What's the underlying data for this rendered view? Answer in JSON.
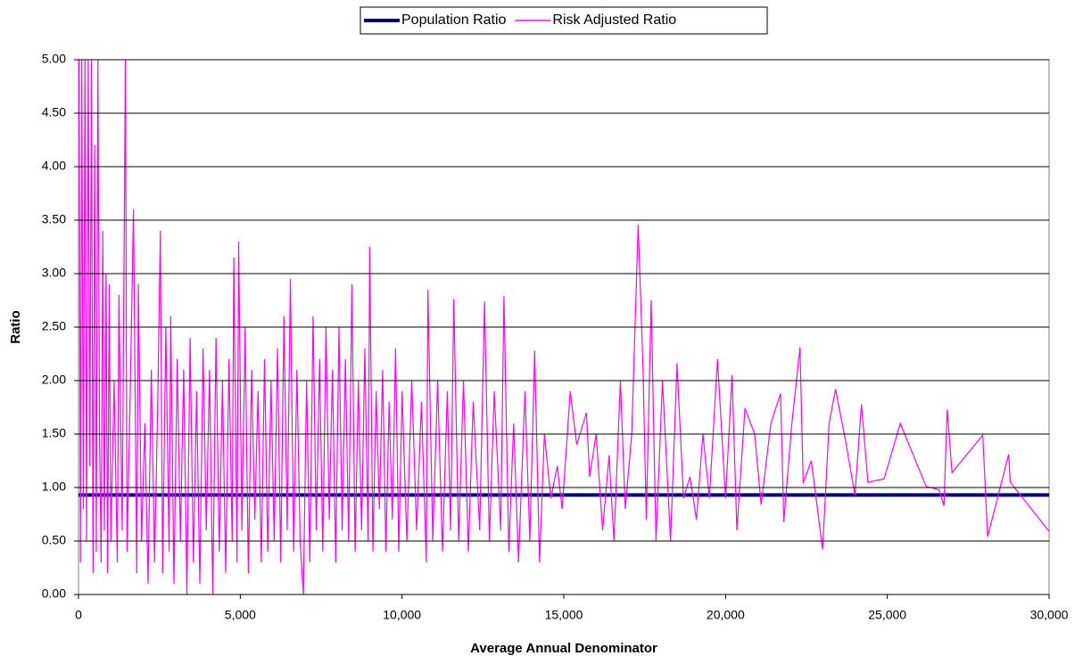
{
  "chart_data": {
    "type": "line",
    "x_label": "Average Annual Denominator",
    "y_label": "Ratio",
    "xlim": [
      0,
      30000
    ],
    "ylim": [
      0,
      5
    ],
    "xticks": [
      0,
      {
        "value": 5000,
        "label": "5,000"
      },
      {
        "value": 10000,
        "label": "10,000"
      },
      {
        "value": 15000,
        "label": "15,000"
      },
      {
        "value": 20000,
        "label": "20,000"
      },
      {
        "value": 25000,
        "label": "25,000"
      },
      {
        "value": 30000,
        "label": "30,000"
      }
    ],
    "yticks": [
      {
        "value": 0,
        "label": "0.00"
      },
      {
        "value": 0.5,
        "label": "0.50"
      },
      {
        "value": 1,
        "label": "1.00"
      },
      {
        "value": 1.5,
        "label": "1.50"
      },
      {
        "value": 2,
        "label": "2.00"
      },
      {
        "value": 2.5,
        "label": "2.50"
      },
      {
        "value": 3,
        "label": "3.00"
      },
      {
        "value": 3.5,
        "label": "3.50"
      },
      {
        "value": 4,
        "label": "4.00"
      },
      {
        "value": 4.5,
        "label": "4.50"
      },
      {
        "value": 5,
        "label": "5.00"
      }
    ],
    "grid": true,
    "legend": "top",
    "series": [
      {
        "name": "Population Ratio",
        "color": "#000080",
        "width": 4,
        "x": [
          0,
          30000
        ],
        "values": [
          0.93,
          0.93
        ]
      },
      {
        "name": "Risk Adjusted Ratio",
        "color": "#ff00ff",
        "width": 1.2,
        "x": [
          20,
          60,
          100,
          150,
          200,
          250,
          300,
          350,
          400,
          450,
          500,
          550,
          600,
          650,
          700,
          750,
          800,
          850,
          900,
          950,
          1000,
          1100,
          1200,
          1250,
          1350,
          1450,
          1500,
          1600,
          1700,
          1800,
          1850,
          1950,
          2050,
          2150,
          2250,
          2350,
          2450,
          2530,
          2600,
          2700,
          2800,
          2850,
          2950,
          3050,
          3150,
          3250,
          3350,
          3450,
          3550,
          3650,
          3750,
          3850,
          3950,
          4050,
          4150,
          4250,
          4350,
          4450,
          4550,
          4650,
          4750,
          4800,
          4900,
          4950,
          5050,
          5150,
          5250,
          5350,
          5450,
          5550,
          5650,
          5750,
          5850,
          5950,
          6050,
          6150,
          6250,
          6350,
          6450,
          6550,
          6650,
          6750,
          6850,
          6950,
          7050,
          7150,
          7250,
          7350,
          7450,
          7550,
          7650,
          7750,
          7850,
          7950,
          8050,
          8150,
          8250,
          8350,
          8450,
          8550,
          8650,
          8750,
          8850,
          8950,
          9000,
          9100,
          9200,
          9300,
          9400,
          9500,
          9600,
          9700,
          9800,
          9900,
          10000,
          10150,
          10300,
          10450,
          10600,
          10750,
          10800,
          10950,
          11100,
          11250,
          11400,
          11500,
          11600,
          11750,
          11900,
          12050,
          12200,
          12400,
          12550,
          12700,
          12850,
          13050,
          13150,
          13300,
          13450,
          13600,
          13800,
          13950,
          14100,
          14250,
          14400,
          14600,
          14800,
          14950,
          15200,
          15400,
          15700,
          15800,
          16000,
          16200,
          16400,
          16550,
          16750,
          16900,
          17100,
          17300,
          17450,
          17550,
          17700,
          17850,
          18050,
          18300,
          18500,
          18700,
          18900,
          19100,
          19300,
          19500,
          19750,
          20000,
          20200,
          20350,
          20600,
          20900,
          21100,
          21400,
          21700,
          21800,
          22050,
          22300,
          22400,
          22650,
          23000,
          23200,
          23400,
          23700,
          24000,
          24200,
          24400,
          24900,
          25400,
          26200,
          26600,
          26750,
          26850,
          27000,
          27950,
          28100,
          28750,
          28800,
          30000
        ],
        "values": [
          5,
          0.3,
          5,
          0.8,
          5,
          0.5,
          5,
          1.2,
          5,
          0.2,
          4.2,
          0.4,
          5,
          1.5,
          0.3,
          3.4,
          0.6,
          3.0,
          0.2,
          2.9,
          0.5,
          2.0,
          0.3,
          2.8,
          0.6,
          5,
          0.4,
          1.9,
          3.6,
          0.2,
          2.9,
          0.5,
          1.6,
          0.1,
          2.1,
          0.3,
          1.8,
          3.4,
          0.2,
          2.5,
          0.4,
          2.6,
          0.1,
          2.2,
          0.5,
          2.1,
          0,
          2.4,
          0.3,
          1.9,
          0.1,
          2.3,
          0.6,
          2.1,
          0,
          2.4,
          0.4,
          2.0,
          0.2,
          2.2,
          0.5,
          3.15,
          0.3,
          3.3,
          0.6,
          2.5,
          0.2,
          2.1,
          0.7,
          1.9,
          0.3,
          2.2,
          0.4,
          2.0,
          0.5,
          2.3,
          0.3,
          2.6,
          0.6,
          2.95,
          0.4,
          2.1,
          0.5,
          0,
          2.0,
          0.3,
          2.6,
          0.6,
          2.2,
          0.4,
          2.5,
          0.7,
          2.1,
          0.3,
          2.5,
          0.6,
          2.2,
          0.5,
          2.9,
          0.4,
          2.0,
          0.6,
          2.3,
          0.5,
          3.25,
          0.4,
          1.9,
          0.8,
          2.1,
          0.4,
          1.8,
          0.7,
          2.3,
          0.4,
          1.9,
          0.5,
          2.0,
          0.6,
          1.8,
          0.3,
          2.85,
          0.5,
          2.0,
          0.4,
          1.9,
          0.6,
          2.76,
          0.5,
          2.0,
          0.4,
          1.8,
          0.6,
          2.74,
          0.5,
          1.9,
          0.6,
          2.79,
          0.4,
          1.6,
          0.3,
          1.9,
          0.5,
          2.28,
          0.3,
          1.5,
          0.9,
          1.2,
          0.8,
          1.9,
          1.4,
          1.7,
          1.1,
          1.5,
          0.6,
          1.3,
          0.5,
          2.0,
          0.8,
          1.5,
          3.46,
          2.1,
          0.7,
          2.75,
          0.5,
          2.0,
          0.5,
          2.16,
          0.9,
          1.1,
          0.7,
          1.5,
          0.9,
          2.2,
          0.9,
          2.05,
          0.6,
          1.74,
          1.5,
          0.84,
          1.6,
          1.88,
          0.68,
          1.6,
          2.31,
          1.04,
          1.25,
          0.42,
          1.6,
          1.92,
          1.45,
          0.93,
          1.78,
          1.05,
          1.08,
          1.6,
          1.01,
          0.98,
          0.83,
          1.73,
          1.14,
          1.49,
          0.54,
          1.31,
          1.05,
          0.59
        ]
      }
    ]
  }
}
